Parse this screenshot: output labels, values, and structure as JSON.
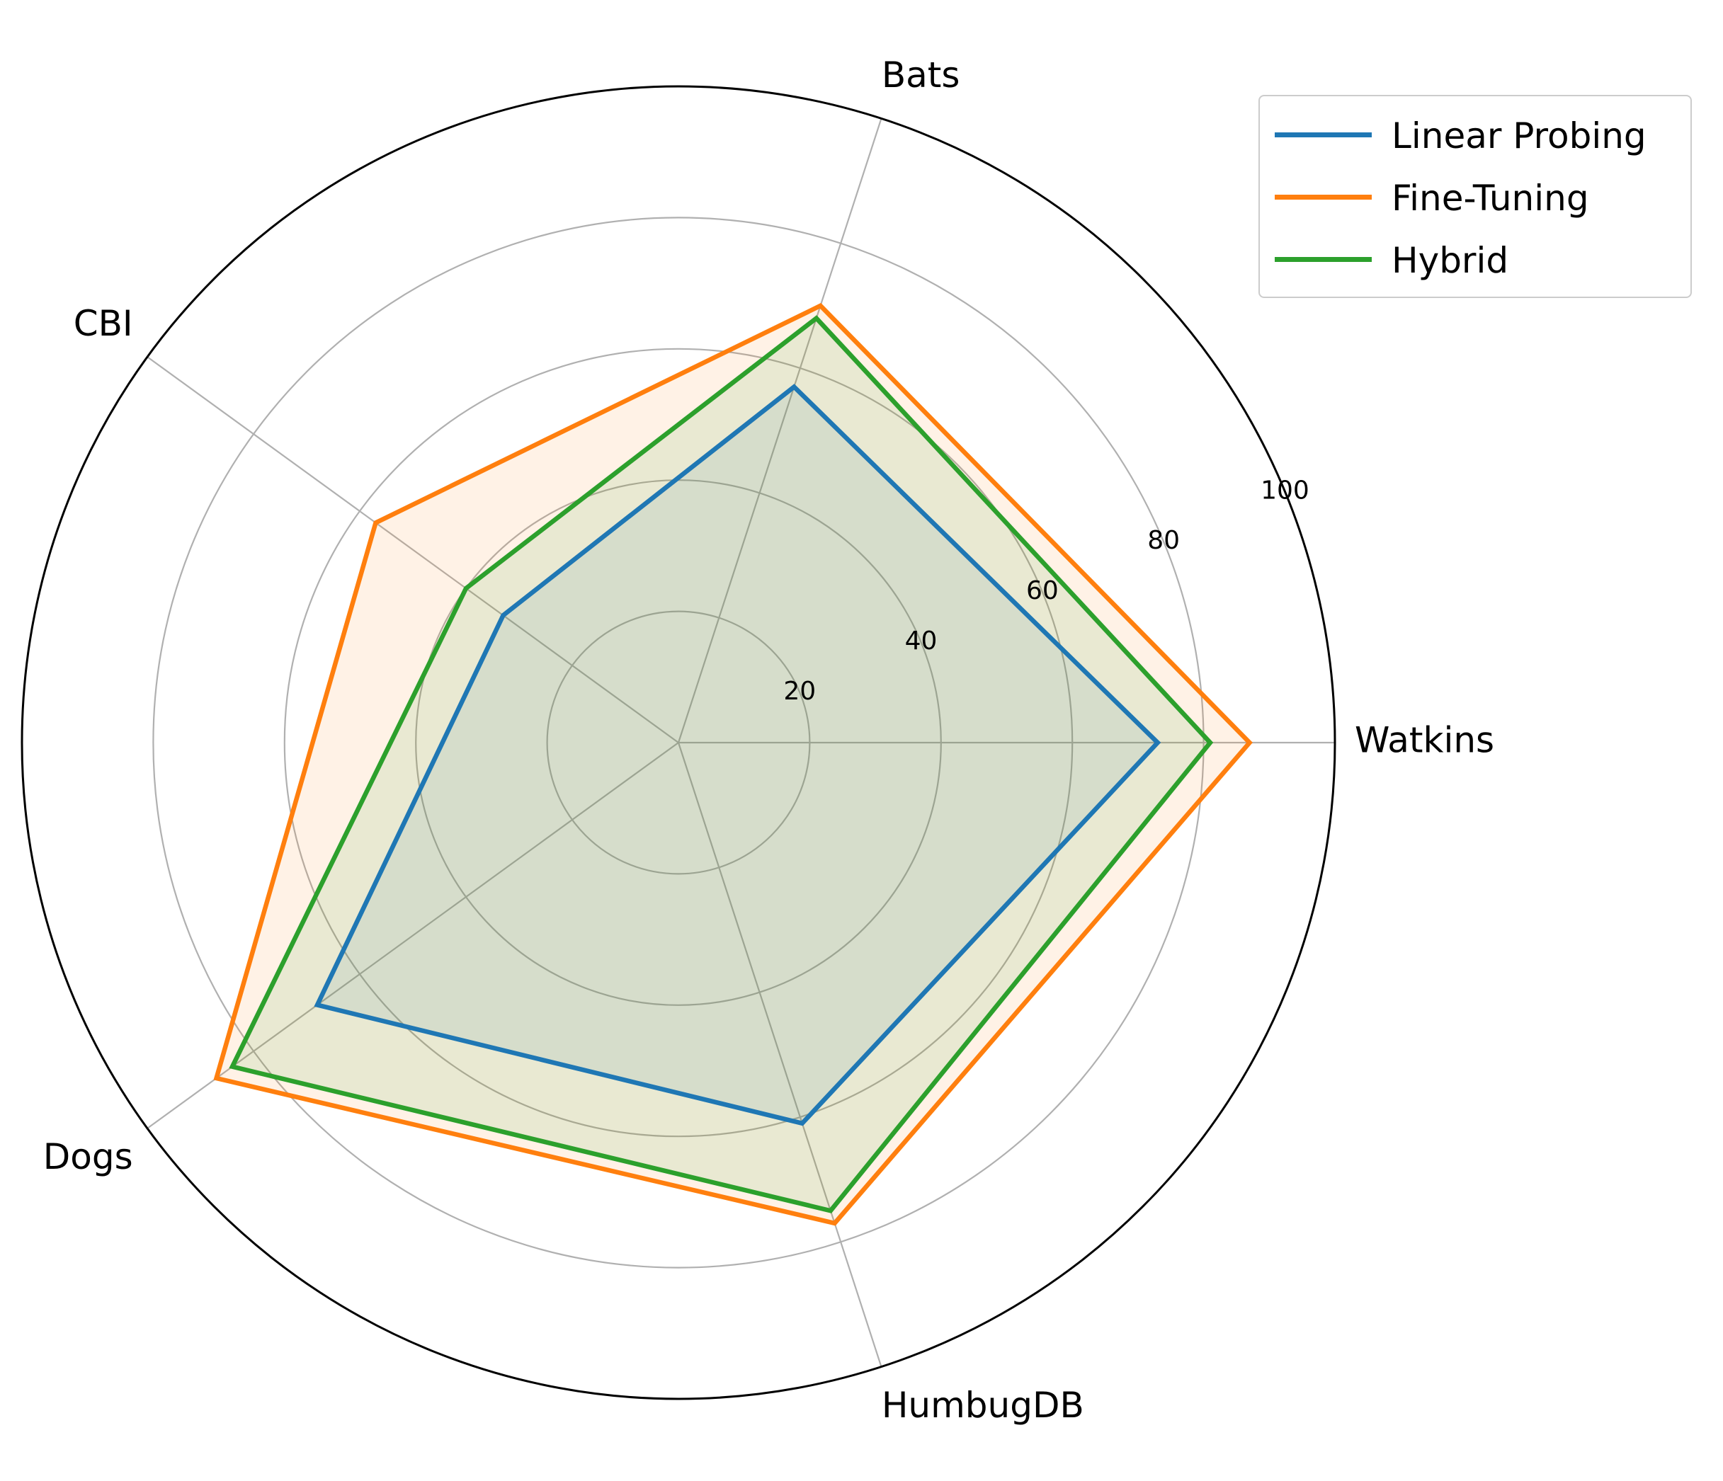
{
  "chart_data": {
    "type": "radar",
    "categories": [
      "Watkins",
      "Bats",
      "CBI",
      "Dogs",
      "HumbugDB"
    ],
    "series": [
      {
        "name": "Linear Probing",
        "color": "#1f77b4",
        "values": [
          73,
          57,
          33,
          68,
          61
        ]
      },
      {
        "name": "Fine-Tuning",
        "color": "#ff7f0e",
        "values": [
          87,
          70,
          57,
          87,
          77
        ]
      },
      {
        "name": "Hybrid",
        "color": "#2ca02c",
        "values": [
          81,
          68,
          40,
          84,
          75
        ]
      }
    ],
    "rlim": [
      0,
      100
    ],
    "rticks": [
      "20",
      "40",
      "60",
      "80",
      "100"
    ],
    "grid": true,
    "legend_position": "top-right"
  }
}
